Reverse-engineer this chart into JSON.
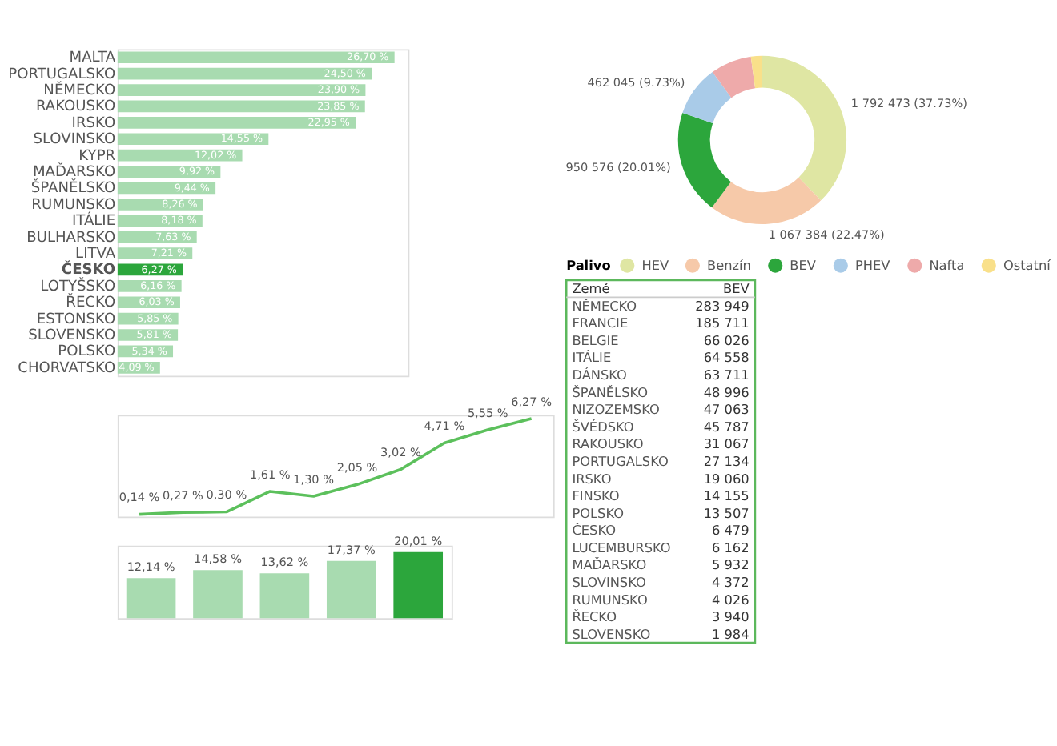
{
  "chart_data": [
    {
      "type": "bar",
      "orientation": "horizontal",
      "categories": [
        "MALTA",
        "PORTUGALSKO",
        "NĚMECKO",
        "RAKOUSKO",
        "IRSKO",
        "SLOVINSKO",
        "KYPR",
        "MAĎARSKO",
        "ŠPANĚLSKO",
        "RUMUNSKO",
        "ITÁLIE",
        "BULHARSKO",
        "LITVA",
        "ČESKO",
        "LOTYŠSKO",
        "ŘECKO",
        "ESTONSKO",
        "SLOVENSKO",
        "POLSKO",
        "CHORVATSKO"
      ],
      "values": [
        26.7,
        24.5,
        23.9,
        23.85,
        22.95,
        14.55,
        12.02,
        9.92,
        9.44,
        8.26,
        8.18,
        7.63,
        7.21,
        6.27,
        6.16,
        6.03,
        5.85,
        5.81,
        5.34,
        4.09
      ],
      "value_labels": [
        "26,70 %",
        "24,50 %",
        "23,90 %",
        "23,85 %",
        "22,95 %",
        "14,55 %",
        "12,02 %",
        "9,92 %",
        "9,44 %",
        "8,26 %",
        "8,18 %",
        "7,63 %",
        "7,21 %",
        "6,27 %",
        "6,16 %",
        "6,03 %",
        "5,85 %",
        "5,81 %",
        "5,34 %",
        "4,09 %"
      ],
      "colors": [
        "#a8dbb0",
        "#a8dbb0",
        "#a8dbb0",
        "#a8dbb0",
        "#a8dbb0",
        "#a8dbb0",
        "#a8dbb0",
        "#a8dbb0",
        "#a8dbb0",
        "#a8dbb0",
        "#a8dbb0",
        "#a8dbb0",
        "#a8dbb0",
        "#2ca63c",
        "#a8dbb0",
        "#a8dbb0",
        "#a8dbb0",
        "#a8dbb0",
        "#a8dbb0",
        "#a8dbb0"
      ]
    },
    {
      "type": "donut",
      "legend_title": "Palivo",
      "legend": "bottom",
      "categories": [
        "HEV",
        "Benzín",
        "BEV",
        "PHEV",
        "Nafta",
        "Ostatní"
      ],
      "values": [
        1792473,
        1067384,
        950576,
        462045,
        375000,
        103000
      ],
      "value_labels": [
        "1 792 473 (37.73%)",
        "1 067 384 (22.47%)",
        "950 576 (20.01%)",
        "462 045 (9.73%)",
        null,
        null
      ],
      "colors": [
        "#dfe6a3",
        "#f6c9a9",
        "#2ca63c",
        "#a9cbe8",
        "#eeaaaa",
        "#f9e08a"
      ]
    },
    {
      "type": "other",
      "annotations": [
        "Země",
        "BEV"
      ],
      "categories": [
        "NĚMECKO",
        "FRANCIE",
        "BELGIE",
        "ITÁLIE",
        "DÁNSKO",
        "ŠPANĚLSKO",
        "NIZOZEMSKO",
        "ŠVÉDSKO",
        "RAKOUSKO",
        "PORTUGALSKO",
        "IRSKO",
        "FINSKO",
        "POLSKO",
        "ČESKO",
        "LUCEMBURSKO",
        "MAĎARSKO",
        "SLOVINSKO",
        "RUMUNSKO",
        "ŘECKO",
        "SLOVENSKO"
      ],
      "values": [
        283949,
        185711,
        66026,
        64558,
        63711,
        48996,
        47063,
        45787,
        31067,
        27134,
        19060,
        14155,
        13507,
        6479,
        6162,
        5932,
        4372,
        4026,
        3940,
        1984
      ],
      "value_labels": [
        "283 949",
        "185 711",
        "66 026",
        "64 558",
        "63 711",
        "48 996",
        "47 063",
        "45 787",
        "31 067",
        "27 134",
        "19 060",
        "14 155",
        "13 507",
        "6 479",
        "6 162",
        "5 932",
        "4 372",
        "4 026",
        "3 940",
        "1 984"
      ]
    },
    {
      "type": "line",
      "categories": [
        null,
        null,
        null,
        null,
        null,
        null,
        null,
        null,
        null,
        null
      ],
      "series": [
        {
          "color": "#5cc05c",
          "values": [
            0.14,
            0.27,
            0.3,
            1.61,
            1.3,
            2.05,
            3.02,
            4.71,
            5.55,
            6.27
          ],
          "value_labels": [
            "0,14 %",
            "0,27 %",
            "0,30 %",
            "1,61 %",
            "1,30 %",
            "2,05 %",
            "3,02 %",
            "4,71 %",
            "5,55 %",
            "6,27 %"
          ]
        }
      ]
    },
    {
      "type": "bar",
      "categories": [
        null,
        null,
        null,
        null,
        null
      ],
      "values": [
        12.14,
        14.58,
        13.62,
        17.37,
        20.01
      ],
      "value_labels": [
        "12,14 %",
        "14,58 %",
        "13,62 %",
        "17,37 %",
        "20,01 %"
      ],
      "colors": [
        "#a8dbb0",
        "#a8dbb0",
        "#a8dbb0",
        "#a8dbb0",
        "#2ca63c"
      ]
    }
  ]
}
